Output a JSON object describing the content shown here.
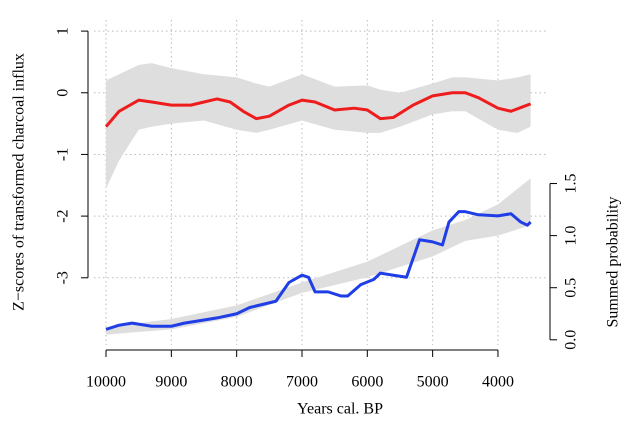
{
  "chart_data": {
    "type": "line",
    "xlabel": "Years cal. BP",
    "ylabel": "Z−scores of transformed charcoal influx",
    "y2label": "Summed probability",
    "xlim": [
      10184,
      3234
    ],
    "xticks": [
      10000,
      9000,
      8000,
      7000,
      6000,
      5000,
      4000
    ],
    "ylim": [
      -4.09,
      1.18
    ],
    "yticks": [
      1,
      0,
      -1,
      -2,
      -3
    ],
    "y2lim": [
      -0.05,
      3.07
    ],
    "y2ticks": [
      {
        "value": 0,
        "label": "0.0"
      },
      0.5,
      {
        "value": 1,
        "label": "1.0"
      },
      1.5
    ],
    "grid": true,
    "bands": [
      {
        "color": "#dedede",
        "axis": "y",
        "x": [
          10000,
          9800,
          9500,
          9300,
          9000,
          8500,
          8000,
          7700,
          7500,
          7000,
          6500,
          6000,
          5800,
          5500,
          5000,
          4700,
          4500,
          4000,
          3700,
          3500
        ],
        "upper": [
          0.2,
          0.3,
          0.45,
          0.48,
          0.4,
          0.3,
          0.25,
          0.15,
          0.1,
          0.3,
          0.1,
          0.12,
          0.05,
          0,
          0.15,
          0.25,
          0.25,
          0.2,
          0.25,
          0.3
        ],
        "lower": [
          -1.55,
          -1.1,
          -0.6,
          -0.55,
          -0.5,
          -0.45,
          -0.6,
          -0.65,
          -0.6,
          -0.45,
          -0.6,
          -0.65,
          -0.65,
          -0.55,
          -0.35,
          -0.3,
          -0.3,
          -0.6,
          -0.65,
          -0.55
        ]
      },
      {
        "color": "#dedede",
        "axis": "y2",
        "x": [
          10000,
          9000,
          8000,
          7000,
          6000,
          5000,
          4500,
          4000,
          3500
        ],
        "upper": [
          0.12,
          0.2,
          0.33,
          0.55,
          0.75,
          1.05,
          1.15,
          1.3,
          1.55
        ],
        "lower": [
          0.05,
          0.1,
          0.22,
          0.45,
          0.6,
          0.8,
          0.95,
          1.0,
          1.1
        ]
      }
    ],
    "series": [
      {
        "color": "#ee1c1c",
        "axis": "y",
        "x": [
          10000,
          9800,
          9500,
          9300,
          9000,
          8700,
          8500,
          8300,
          8100,
          7900,
          7700,
          7500,
          7200,
          7000,
          6800,
          6500,
          6200,
          6000,
          5800,
          5600,
          5300,
          5000,
          4700,
          4500,
          4300,
          4000,
          3800,
          3600,
          3500
        ],
        "values": [
          -0.55,
          -0.3,
          -0.12,
          -0.15,
          -0.2,
          -0.2,
          -0.15,
          -0.1,
          -0.15,
          -0.3,
          -0.42,
          -0.38,
          -0.2,
          -0.12,
          -0.15,
          -0.28,
          -0.25,
          -0.28,
          -0.42,
          -0.4,
          -0.2,
          -0.05,
          0,
          0,
          -0.08,
          -0.25,
          -0.3,
          -0.22,
          -0.18
        ]
      },
      {
        "color": "#1f3ee6",
        "axis": "y2",
        "x": [
          10000,
          9800,
          9600,
          9300,
          9000,
          8800,
          8500,
          8300,
          8000,
          7800,
          7600,
          7400,
          7200,
          7000,
          6900,
          6800,
          6600,
          6400,
          6300,
          6100,
          5900,
          5800,
          5600,
          5400,
          5200,
          5000,
          4850,
          4750,
          4600,
          4500,
          4300,
          4000,
          3800,
          3650,
          3550,
          3500
        ],
        "values": [
          0.1,
          0.14,
          0.16,
          0.13,
          0.13,
          0.16,
          0.19,
          0.21,
          0.25,
          0.31,
          0.34,
          0.37,
          0.55,
          0.62,
          0.6,
          0.46,
          0.46,
          0.42,
          0.42,
          0.53,
          0.58,
          0.64,
          0.62,
          0.6,
          0.96,
          0.94,
          0.91,
          1.13,
          1.23,
          1.23,
          1.2,
          1.19,
          1.21,
          1.13,
          1.1,
          1.13
        ]
      }
    ]
  }
}
